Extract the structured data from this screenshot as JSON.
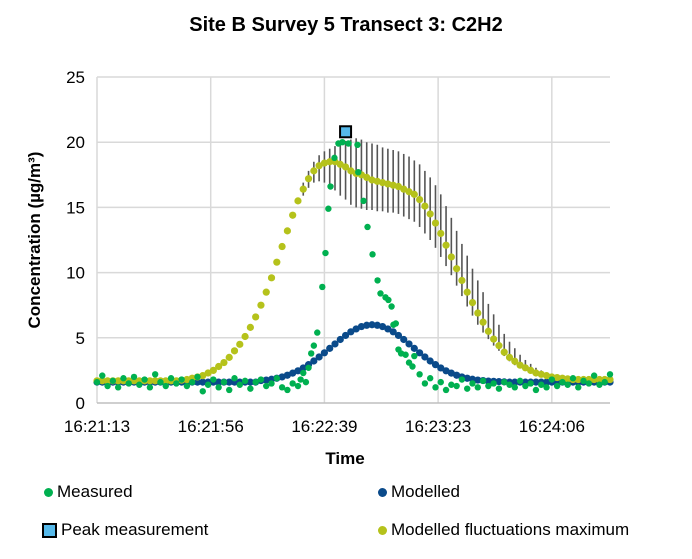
{
  "colors": {
    "measured": "#00b050",
    "modelled": "#0a4a8a",
    "fluct": "#b5c21b",
    "errbar": "#555555",
    "peak": "#56b9ea",
    "grid": "#d9d9d9"
  },
  "chart_data": {
    "type": "scatter",
    "title": "Site B Survey 5 Transect 3: C2H2",
    "xlabel": "Time",
    "ylabel": "Concentration (µg/m³)",
    "x_units": "seconds since 16:21:13",
    "xlim": [
      0,
      194
    ],
    "ylim": [
      0,
      25
    ],
    "yticks": [
      "0",
      "5",
      "10",
      "15",
      "20",
      "25"
    ],
    "xticks": [
      {
        "t": 0,
        "label": "16:21:13"
      },
      {
        "t": 43,
        "label": "16:21:56"
      },
      {
        "t": 86,
        "label": "16:22:39"
      },
      {
        "t": 129,
        "label": "16:23:23"
      },
      {
        "t": 172,
        "label": "16:24:06"
      }
    ],
    "grid": true,
    "legend": [
      "Measured",
      "Modelled",
      "Peak measurement",
      "Modelled fluctuations maximum"
    ],
    "legend_position": "bottom",
    "measured": [
      [
        0,
        1.6
      ],
      [
        2,
        2.1
      ],
      [
        4,
        1.3
      ],
      [
        6,
        1.7
      ],
      [
        8,
        1.2
      ],
      [
        10,
        1.9
      ],
      [
        12,
        1.5
      ],
      [
        14,
        2.0
      ],
      [
        16,
        1.4
      ],
      [
        18,
        1.8
      ],
      [
        20,
        1.2
      ],
      [
        22,
        2.2
      ],
      [
        24,
        1.6
      ],
      [
        26,
        1.3
      ],
      [
        28,
        1.9
      ],
      [
        30,
        1.5
      ],
      [
        32,
        1.8
      ],
      [
        34,
        1.3
      ],
      [
        36,
        1.6
      ],
      [
        38,
        2.0
      ],
      [
        40,
        0.9
      ],
      [
        42,
        1.4
      ],
      [
        44,
        1.8
      ],
      [
        46,
        1.2
      ],
      [
        48,
        1.6
      ],
      [
        50,
        1.0
      ],
      [
        52,
        1.9
      ],
      [
        54,
        1.4
      ],
      [
        56,
        1.7
      ],
      [
        58,
        1.1
      ],
      [
        60,
        1.6
      ],
      [
        62,
        1.8
      ],
      [
        64,
        1.3
      ],
      [
        66,
        1.5
      ],
      [
        68,
        1.9
      ],
      [
        70,
        1.2
      ],
      [
        72,
        1.0
      ],
      [
        74,
        1.5
      ],
      [
        76,
        1.3
      ],
      [
        77,
        1.8
      ],
      [
        78,
        2.3
      ],
      [
        79,
        1.6
      ],
      [
        80,
        2.7
      ],
      [
        81,
        3.8
      ],
      [
        82,
        4.4
      ],
      [
        83.3,
        5.4
      ],
      [
        85.2,
        8.9
      ],
      [
        86.4,
        11.5
      ],
      [
        87.5,
        14.9
      ],
      [
        88.3,
        16.6
      ],
      [
        89.8,
        18.8
      ],
      [
        91.3,
        19.9
      ],
      [
        92.8,
        20.0
      ],
      [
        95.1,
        19.9
      ],
      [
        98.5,
        19.8
      ],
      [
        98.8,
        17.7
      ],
      [
        100.8,
        15.5
      ],
      [
        102.3,
        13.5
      ],
      [
        104.2,
        11.4
      ],
      [
        106.1,
        9.4
      ],
      [
        107.2,
        8.4
      ],
      [
        109.1,
        8.1
      ],
      [
        110.2,
        7.9
      ],
      [
        111.4,
        7.4
      ],
      [
        112.1,
        6.0
      ],
      [
        113,
        6.1
      ],
      [
        114,
        4.1
      ],
      [
        115,
        3.8
      ],
      [
        116.7,
        3.7
      ],
      [
        118,
        3.1
      ],
      [
        119.3,
        2.8
      ],
      [
        120,
        3.6
      ],
      [
        122,
        2.2
      ],
      [
        124,
        1.5
      ],
      [
        126,
        1.9
      ],
      [
        128,
        1.2
      ],
      [
        130,
        1.6
      ],
      [
        132,
        1.0
      ],
      [
        134,
        1.4
      ],
      [
        136,
        1.3
      ],
      [
        138,
        1.8
      ],
      [
        140,
        1.1
      ],
      [
        142,
        1.5
      ],
      [
        144,
        1.2
      ],
      [
        146,
        1.7
      ],
      [
        148,
        1.3
      ],
      [
        150,
        1.5
      ],
      [
        152,
        1.1
      ],
      [
        154,
        1.6
      ],
      [
        156,
        1.4
      ],
      [
        158,
        1.2
      ],
      [
        160,
        1.7
      ],
      [
        162,
        1.3
      ],
      [
        164,
        1.5
      ],
      [
        166,
        1.0
      ],
      [
        168,
        1.4
      ],
      [
        170,
        1.2
      ],
      [
        172,
        1.8
      ],
      [
        174,
        1.3
      ],
      [
        176,
        1.6
      ],
      [
        178,
        1.4
      ],
      [
        180,
        1.9
      ],
      [
        182,
        1.2
      ],
      [
        184,
        1.7
      ],
      [
        186,
        1.5
      ],
      [
        188,
        2.1
      ],
      [
        190,
        1.4
      ],
      [
        192,
        1.6
      ],
      [
        194,
        2.2
      ]
    ],
    "modelled": {
      "t_start": 0,
      "t_step": 2,
      "values": [
        1.6,
        1.6,
        1.6,
        1.6,
        1.6,
        1.6,
        1.6,
        1.6,
        1.6,
        1.6,
        1.6,
        1.6,
        1.6,
        1.6,
        1.6,
        1.6,
        1.6,
        1.6,
        1.6,
        1.6,
        1.6,
        1.6,
        1.6,
        1.6,
        1.6,
        1.6,
        1.6,
        1.6,
        1.6,
        1.6,
        1.6,
        1.72,
        1.76,
        1.82,
        1.9,
        2.0,
        2.13,
        2.29,
        2.47,
        2.69,
        2.94,
        3.22,
        3.53,
        3.85,
        4.19,
        4.53,
        4.87,
        5.18,
        5.46,
        5.68,
        5.86,
        5.96,
        6.0,
        5.96,
        5.86,
        5.68,
        5.46,
        5.18,
        4.87,
        4.53,
        4.19,
        3.85,
        3.53,
        3.22,
        2.94,
        2.69,
        2.47,
        2.29,
        2.13,
        2.0,
        1.9,
        1.82,
        1.76,
        1.72,
        1.68,
        1.66,
        1.64,
        1.62,
        1.6,
        1.6,
        1.6,
        1.6,
        1.6,
        1.6,
        1.6,
        1.6,
        1.6,
        1.6,
        1.6,
        1.6,
        1.6,
        1.6,
        1.6,
        1.6,
        1.6,
        1.6,
        1.6,
        1.6
      ]
    },
    "fluctuations_max": {
      "t_start": 0,
      "t_step": 2,
      "values": [
        1.7,
        1.7,
        1.7,
        1.7,
        1.7,
        1.7,
        1.7,
        1.7,
        1.7,
        1.7,
        1.7,
        1.7,
        1.7,
        1.7,
        1.7,
        1.7,
        1.75,
        1.8,
        1.9,
        2.0,
        2.1,
        2.3,
        2.5,
        2.8,
        3.1,
        3.5,
        4.0,
        4.5,
        5.1,
        5.8,
        6.6,
        7.5,
        8.5,
        9.6,
        10.8,
        12.0,
        13.2,
        14.4,
        15.5,
        16.4,
        17.2,
        17.8,
        18.2,
        18.4,
        18.5,
        18.5,
        18.3,
        18.1,
        17.8,
        17.6,
        17.5,
        17.3,
        17.1,
        17.0,
        16.9,
        16.8,
        16.7,
        16.6,
        16.4,
        16.2,
        16.0,
        15.6,
        15.1,
        14.5,
        13.8,
        13.0,
        12.1,
        11.2,
        10.3,
        9.4,
        8.5,
        7.7,
        6.9,
        6.2,
        5.5,
        4.9,
        4.4,
        3.9,
        3.5,
        3.2,
        2.9,
        2.7,
        2.5,
        2.3,
        2.2,
        2.1,
        2.0,
        1.95,
        1.9,
        1.85,
        1.8,
        1.8,
        1.8,
        1.8,
        1.8,
        1.8,
        1.8,
        1.8
      ]
    },
    "fluctuation_range": [
      [
        78,
        15.9,
        16.9
      ],
      [
        80,
        16.5,
        17.8
      ],
      [
        82,
        16.9,
        18.5
      ],
      [
        84,
        17.0,
        19.0
      ],
      [
        86,
        16.9,
        19.3
      ],
      [
        88,
        16.7,
        19.5
      ],
      [
        90,
        16.3,
        19.7
      ],
      [
        92,
        15.9,
        19.9
      ],
      [
        94,
        15.6,
        20.1
      ],
      [
        96,
        15.2,
        20.2
      ],
      [
        98,
        15.0,
        20.3
      ],
      [
        100,
        14.9,
        20.2
      ],
      [
        102,
        14.8,
        20.0
      ],
      [
        104,
        14.8,
        19.9
      ],
      [
        106,
        14.7,
        19.8
      ],
      [
        108,
        14.7,
        19.6
      ],
      [
        110,
        14.6,
        19.5
      ],
      [
        112,
        14.6,
        19.4
      ],
      [
        114,
        14.5,
        19.3
      ],
      [
        116,
        14.3,
        19.1
      ],
      [
        118,
        14.1,
        18.9
      ],
      [
        120,
        13.9,
        18.6
      ],
      [
        122,
        13.5,
        18.3
      ],
      [
        124,
        13.0,
        17.8
      ],
      [
        126,
        12.5,
        17.3
      ],
      [
        128,
        11.9,
        16.7
      ],
      [
        130,
        11.2,
        16.0
      ],
      [
        132,
        10.5,
        15.1
      ],
      [
        134,
        9.8,
        14.2
      ],
      [
        136,
        9.0,
        13.2
      ],
      [
        138,
        8.2,
        12.2
      ],
      [
        140,
        7.4,
        11.3
      ],
      [
        142,
        6.7,
        10.3
      ],
      [
        144,
        6.0,
        9.4
      ],
      [
        146,
        5.4,
        8.5
      ],
      [
        148,
        4.9,
        7.6
      ],
      [
        150,
        4.4,
        6.8
      ],
      [
        152,
        4.0,
        6.0
      ],
      [
        154,
        3.6,
        5.3
      ],
      [
        156,
        3.2,
        4.7
      ],
      [
        158,
        2.9,
        4.2
      ],
      [
        160,
        2.7,
        3.7
      ],
      [
        162,
        2.5,
        3.3
      ],
      [
        164,
        2.3,
        3.0
      ],
      [
        166,
        2.2,
        2.7
      ],
      [
        168,
        2.1,
        2.5
      ],
      [
        170,
        2.0,
        2.3
      ]
    ],
    "peak": [
      94,
      20.8
    ]
  }
}
